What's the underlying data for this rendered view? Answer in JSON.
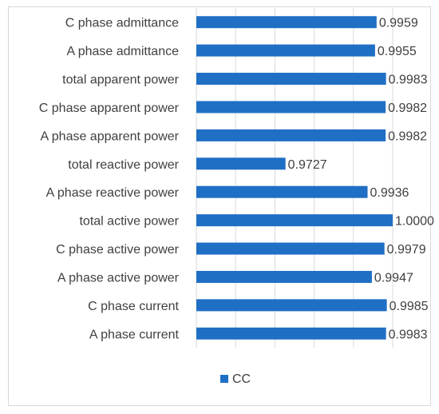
{
  "chart_data": {
    "type": "bar",
    "orientation": "horizontal",
    "title": "",
    "xlabel": "",
    "ylabel": "",
    "xlim": [
      0.95,
      1.0
    ],
    "grid": true,
    "legend_position": "bottom",
    "categories": [
      "C phase admittance",
      "A phase admittance",
      "total apparent power",
      "C phase apparent power",
      "A phase apparent power",
      "total reactive power",
      "A phase reactive power",
      "total active power",
      "C phase active power",
      "A phase active power",
      "C phase current",
      "A phase current"
    ],
    "series": [
      {
        "name": "CC",
        "color": "#1f6fc5",
        "values": [
          0.9959,
          0.9955,
          0.9983,
          0.9982,
          0.9982,
          0.9727,
          0.9936,
          1.0,
          0.9979,
          0.9947,
          0.9985,
          0.9983
        ],
        "value_labels": [
          "0.9959",
          "0.9955",
          "0.9983",
          "0.9982",
          "0.9982",
          "0.9727",
          "0.9936",
          "1.0000",
          "0.9979",
          "0.9947",
          "0.9985",
          "0.9983"
        ]
      }
    ]
  }
}
